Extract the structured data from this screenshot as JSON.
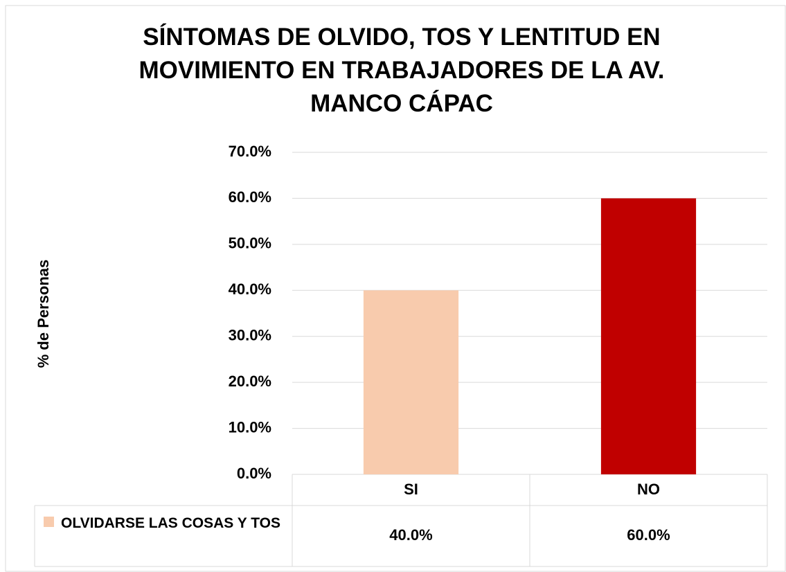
{
  "chart_data": {
    "type": "bar",
    "title": "SÍNTOMAS DE OLVIDO, TOS Y LENTITUD EN MOVIMIENTO EN TRABAJADORES DE LA AV. MANCO CÁPAC",
    "y_label": "% de Personas",
    "categories": [
      "SI",
      "NO"
    ],
    "series": [
      {
        "name": "OLVIDARSE LAS COSAS Y TOS",
        "colors": [
          "#f8cbad",
          "#c00000"
        ],
        "values": [
          40,
          60
        ],
        "value_labels": [
          "40.0%",
          "60.0%"
        ]
      }
    ],
    "ylim": [
      0,
      70
    ],
    "yticks": [
      {
        "value": 0,
        "label": "0.0%"
      },
      {
        "value": 10,
        "label": "10.0%"
      },
      {
        "value": 20,
        "label": "20.0%"
      },
      {
        "value": 30,
        "label": "30.0%"
      },
      {
        "value": 40,
        "label": "40.0%"
      },
      {
        "value": 50,
        "label": "50.0%"
      },
      {
        "value": 60,
        "label": "60.0%"
      },
      {
        "value": 70,
        "label": "70.0%"
      }
    ],
    "grid": true,
    "data_table": true
  }
}
